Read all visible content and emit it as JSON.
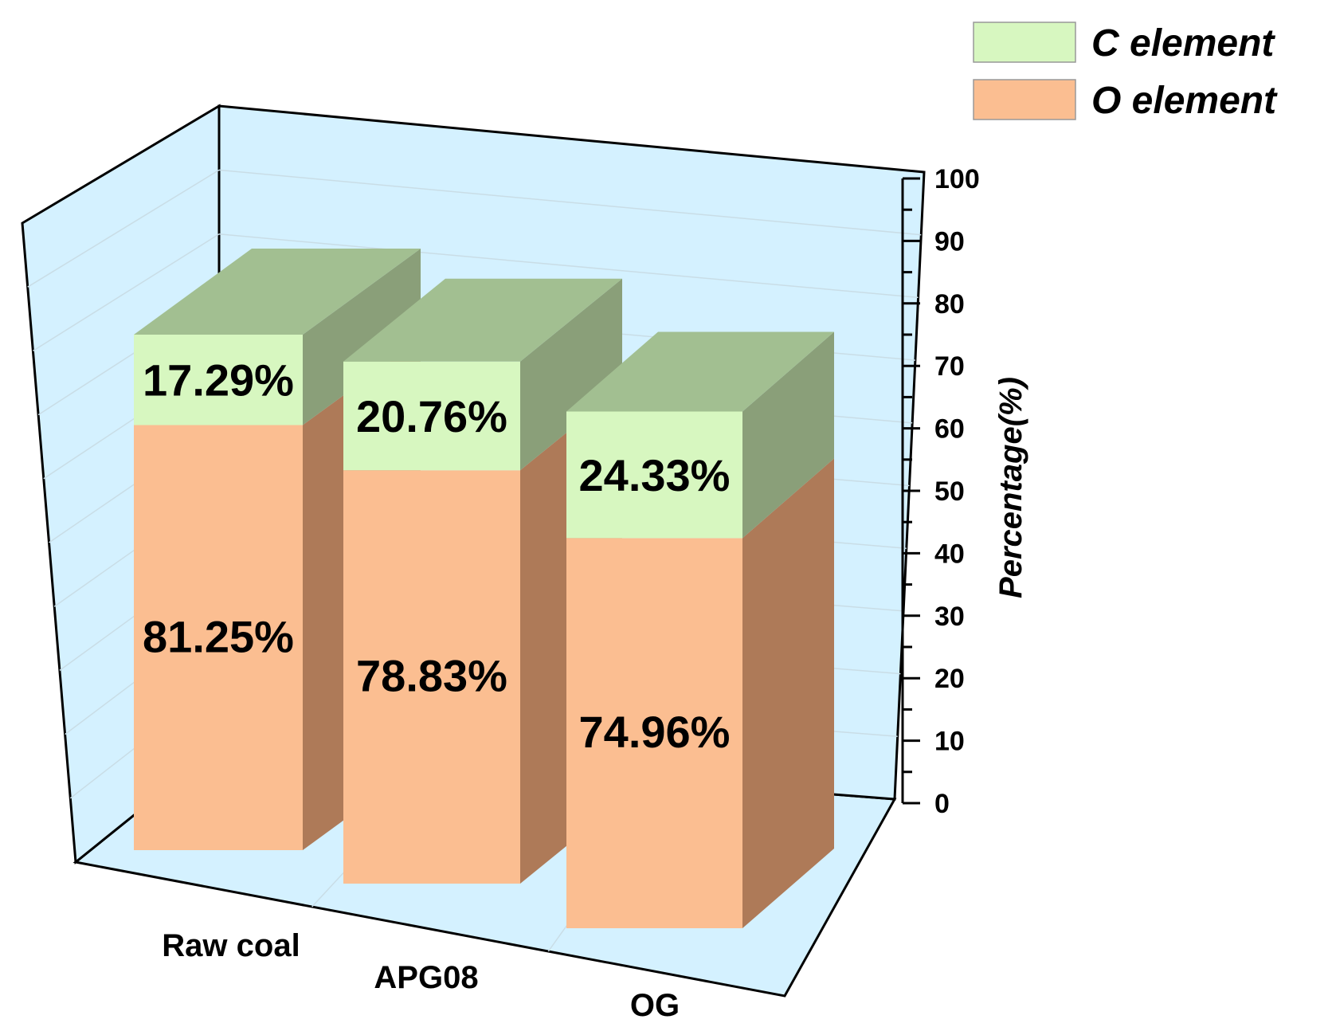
{
  "chart_data": {
    "type": "bar",
    "stacked": true,
    "projection": "3d",
    "categories": [
      "Raw coal",
      "APG08",
      "OG"
    ],
    "series": [
      {
        "name": "O element",
        "values": [
          81.25,
          78.83,
          74.96
        ],
        "labels": [
          "81.25%",
          "78.83%",
          "74.96%"
        ],
        "color": "#FBBE91",
        "side_color": "#AE7A58",
        "top_color": "#AE7A58"
      },
      {
        "name": "C element",
        "values": [
          17.29,
          20.76,
          24.33
        ],
        "labels": [
          "17.29%",
          "20.76%",
          "24.33%"
        ],
        "color": "#D7F7C0",
        "side_color": "#8A9F79",
        "top_color": "#A2BF91"
      }
    ],
    "ylabel": "Percentage(%)",
    "xlabel": "",
    "ylim": [
      0,
      100
    ],
    "yticks": [
      "0",
      "10",
      "20",
      "30",
      "40",
      "50",
      "60",
      "70",
      "80",
      "90",
      "100"
    ],
    "grid": true,
    "legend": {
      "placement": "top-right",
      "entries": [
        "C element",
        "O element"
      ]
    },
    "colors": {
      "wall": "#D4F1FF",
      "grid": "#C9DDE6",
      "axis": "#000000"
    }
  }
}
